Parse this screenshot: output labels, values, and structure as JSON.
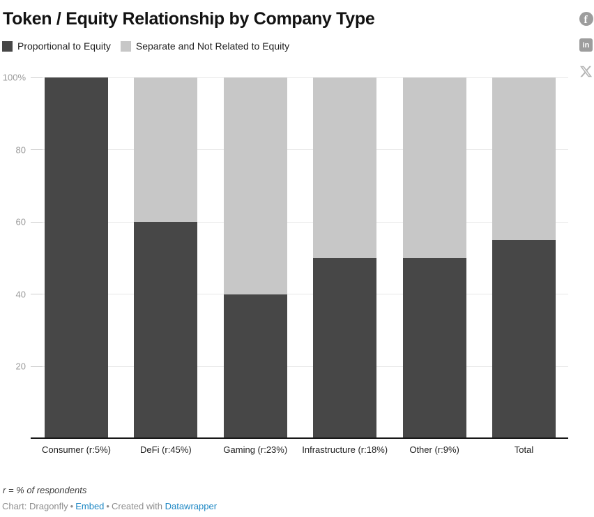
{
  "page": {
    "title": "Token / Equity Relationship by Company Type"
  },
  "legend": {
    "items": [
      {
        "label": "Proportional to Equity",
        "color": "#474747"
      },
      {
        "label": "Separate and Not Related to Equity",
        "color": "#c7c7c7"
      }
    ]
  },
  "social": {
    "icons": [
      "facebook-icon",
      "linkedin-icon",
      "x-icon"
    ],
    "linkedin_glyph": "in",
    "facebook_glyph": "f"
  },
  "chart_data": {
    "type": "bar",
    "stacked": true,
    "title": "Token / Equity Relationship by Company Type",
    "categories": [
      "Consumer (r:5%)",
      "DeFi (r:45%)",
      "Gaming (r:23%)",
      "Infrastructure (r:18%)",
      "Other (r:9%)",
      "Total"
    ],
    "series": [
      {
        "name": "Proportional to Equity",
        "color": "#474747",
        "values": [
          100,
          60,
          40,
          50,
          50,
          55
        ]
      },
      {
        "name": "Separate and Not Related to Equity",
        "color": "#c7c7c7",
        "values": [
          0,
          40,
          60,
          50,
          50,
          45
        ]
      }
    ],
    "xlabel": "",
    "ylabel": "",
    "ylim": [
      0,
      100
    ],
    "yticks": [
      20,
      40,
      60,
      80,
      100
    ],
    "ytick_labels": [
      "20",
      "40",
      "60",
      "80",
      "100%"
    ],
    "grid": true,
    "legend_position": "top"
  },
  "footer": {
    "note": "r = % of respondents",
    "chart_credit": "Chart: Dragonfly",
    "separator": "•",
    "embed_label": "Embed",
    "created_with": "Created with",
    "datawrapper_label": "Datawrapper"
  },
  "colors": {
    "series_dark": "#474747",
    "series_light": "#c7c7c7",
    "gridline": "#e7e7e7",
    "axis_line": "#181818",
    "y_tick_text": "#9b9b9b",
    "x_tick_text": "#1d1d1d",
    "link_blue": "#1d87c4",
    "social_icon_gray": "#9d9d9d"
  }
}
